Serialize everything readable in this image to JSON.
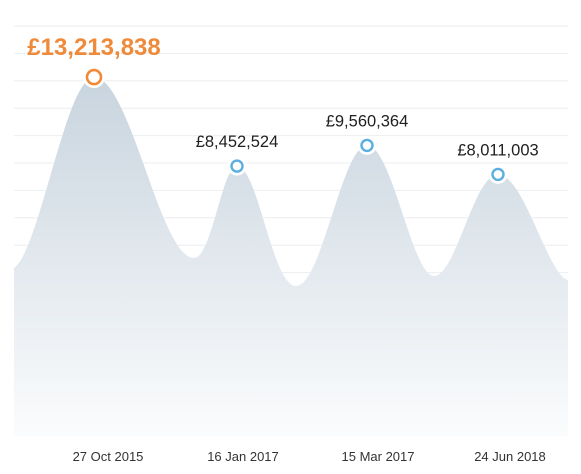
{
  "colors": {
    "highlight": "#ef8a3a",
    "marker": "#5aaee0",
    "area_top": "#c8d4de",
    "area_bottom": "#fbfcfd",
    "grid": "#eceef1"
  },
  "chart_data": {
    "type": "area",
    "title": "",
    "xlabel": "",
    "ylabel": "",
    "grid": true,
    "x_ticks": [
      "27 Oct 2015",
      "16 Jan 2017",
      "15 Mar 2017",
      "24 Jun 2018"
    ],
    "peaks": [
      {
        "x": "27 Oct 2015",
        "value": 13213838,
        "label": "£13,213,838",
        "highlight": true
      },
      {
        "x": "16 Jan 2017",
        "value": 8452524,
        "label": "£8,452,524",
        "highlight": false
      },
      {
        "x": "15 Mar 2017",
        "value": 9560364,
        "label": "£9,560,364",
        "highlight": false
      },
      {
        "x": "24 Jun 2018",
        "value": 8011003,
        "label": "£8,011,003",
        "highlight": false
      }
    ]
  }
}
